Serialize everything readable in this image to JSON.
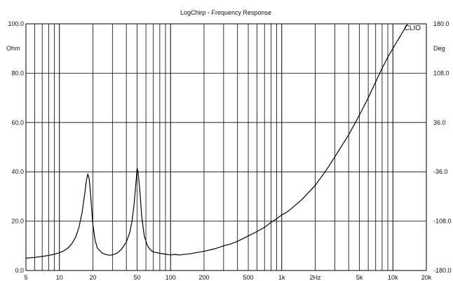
{
  "chart_data": {
    "type": "line",
    "title": "LogChirp - Frequency Response",
    "brand": "CLIO",
    "x_scale": "log",
    "xlim": [
      5,
      20000
    ],
    "ylim": [
      0,
      100
    ],
    "y2lim": [
      -180,
      180
    ],
    "ylabel": "Ohm",
    "y2label": "Deg",
    "grid": true,
    "x_ticks": [
      5,
      10,
      20,
      50,
      100,
      200,
      500,
      1000,
      2000,
      5000,
      10000,
      20000
    ],
    "x_tick_labels": [
      "5",
      "10",
      "20",
      "50",
      "100",
      "200",
      "500",
      "1k",
      "2Hz",
      "5k",
      "10k",
      "20k"
    ],
    "y_ticks": [
      0,
      20,
      40,
      60,
      80,
      100
    ],
    "y_tick_labels": [
      "0.0",
      "20.0",
      "40.0",
      "60.0",
      "80.0",
      "100.0"
    ],
    "y2_ticks": [
      -180,
      -108,
      -36,
      36,
      108,
      180
    ],
    "y2_tick_labels": [
      "-180.0",
      "-108.0",
      "-36.0",
      "36.0",
      "108.0",
      "180.0"
    ],
    "series": [
      {
        "color": "#000000",
        "x": [
          5,
          6,
          7,
          8,
          9,
          10,
          11,
          12,
          13,
          14,
          15,
          16,
          17,
          17.5,
          18,
          18.5,
          19,
          19.5,
          20,
          21,
          22,
          24,
          26,
          28,
          30,
          33,
          36,
          40,
          43,
          45,
          47,
          49,
          50,
          51,
          53,
          55,
          58,
          62,
          66,
          70,
          80,
          90,
          100,
          110,
          120,
          150,
          200,
          250,
          300,
          350,
          400,
          500,
          600,
          700,
          800,
          900,
          1000,
          1100,
          1200,
          1500,
          2000,
          2500,
          3000,
          4000,
          5000,
          6000,
          7000,
          8000,
          9000,
          10000,
          12000,
          14000,
          16000
        ],
        "values": [
          5.0,
          5.3,
          5.7,
          6.1,
          6.6,
          7.2,
          8.0,
          9.2,
          11.0,
          13.5,
          17.5,
          23.5,
          32.0,
          36.5,
          39.0,
          37.5,
          32.0,
          25.0,
          18.5,
          12.0,
          9.0,
          7.2,
          6.5,
          6.2,
          6.3,
          7.0,
          8.5,
          11.5,
          15.5,
          20.0,
          27.0,
          36.5,
          41.5,
          40.0,
          32.0,
          22.0,
          14.0,
          10.0,
          8.3,
          7.5,
          7.0,
          6.6,
          6.3,
          6.5,
          6.3,
          6.8,
          7.8,
          8.8,
          10.0,
          10.8,
          11.8,
          14.0,
          15.8,
          17.5,
          19.5,
          21.0,
          22.5,
          23.5,
          24.8,
          28.5,
          34.5,
          40.5,
          46.0,
          55.0,
          63.0,
          70.0,
          76.5,
          82.0,
          86.5,
          90.0,
          96.0,
          101.0,
          105.0
        ]
      }
    ]
  }
}
